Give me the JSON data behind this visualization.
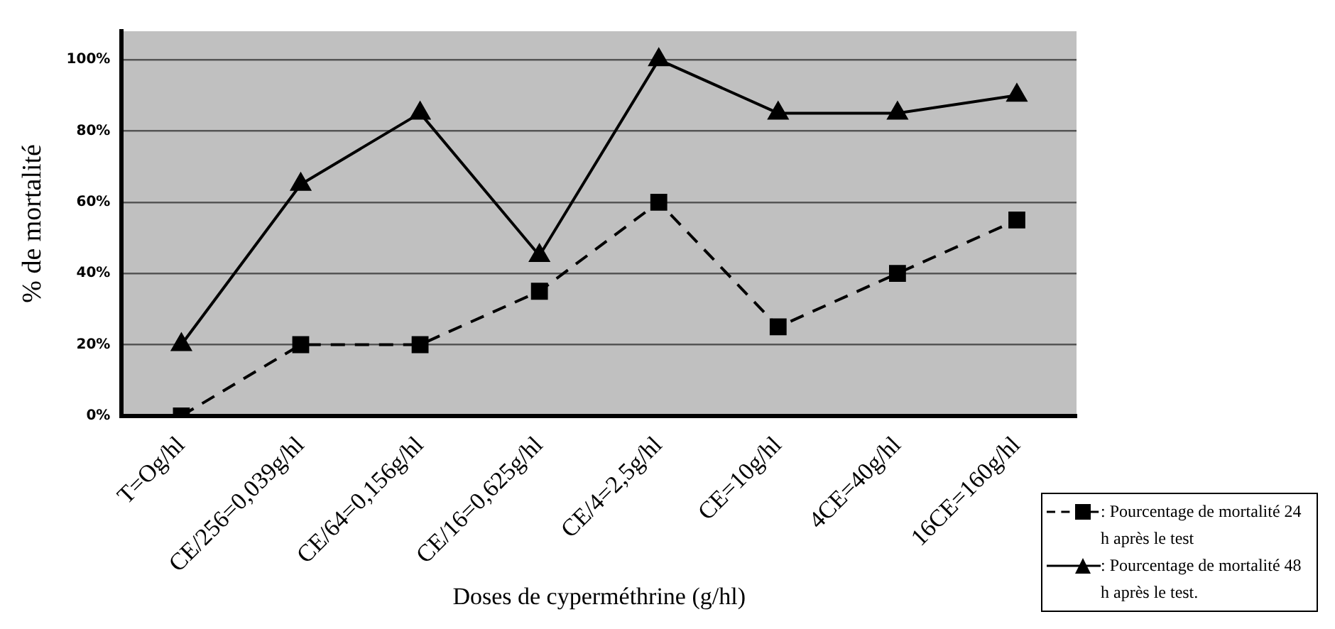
{
  "chart_data": {
    "type": "line",
    "xlabel": "Doses de cyperméthrine (g/hl)",
    "ylabel": "% de mortalité",
    "categories": [
      "T=Og/hl",
      "CE/256=0,039g/hl",
      "CE/64=0,156g/hl",
      "CE/16=0,625g/hl",
      "CE/4=2,5g/hl",
      "CE=10g/hl",
      "4CE=40g/hl",
      "16CE=160g/hl"
    ],
    "series": [
      {
        "name": ": Pourcentage de mortalité 24 h après le test",
        "color": "#000000",
        "marker": "square",
        "line_style": "dashed",
        "values": [
          0,
          20,
          20,
          35,
          60,
          25,
          40,
          55
        ]
      },
      {
        "name": ": Pourcentage de mortalité 48 h après le test.",
        "color": "#000000",
        "marker": "triangle",
        "line_style": "solid",
        "values": [
          20,
          65,
          85,
          45,
          100,
          85,
          85,
          90
        ]
      }
    ],
    "ylim": [
      0,
      108
    ],
    "yticks": [
      {
        "value": 0,
        "label": "0%"
      },
      {
        "value": 20,
        "label": "20%"
      },
      {
        "value": 40,
        "label": "40%"
      },
      {
        "value": 60,
        "label": "60%"
      },
      {
        "value": 80,
        "label": "80%"
      },
      {
        "value": 100,
        "label": "100%"
      }
    ],
    "grid": "y",
    "legend": "bottom right"
  }
}
